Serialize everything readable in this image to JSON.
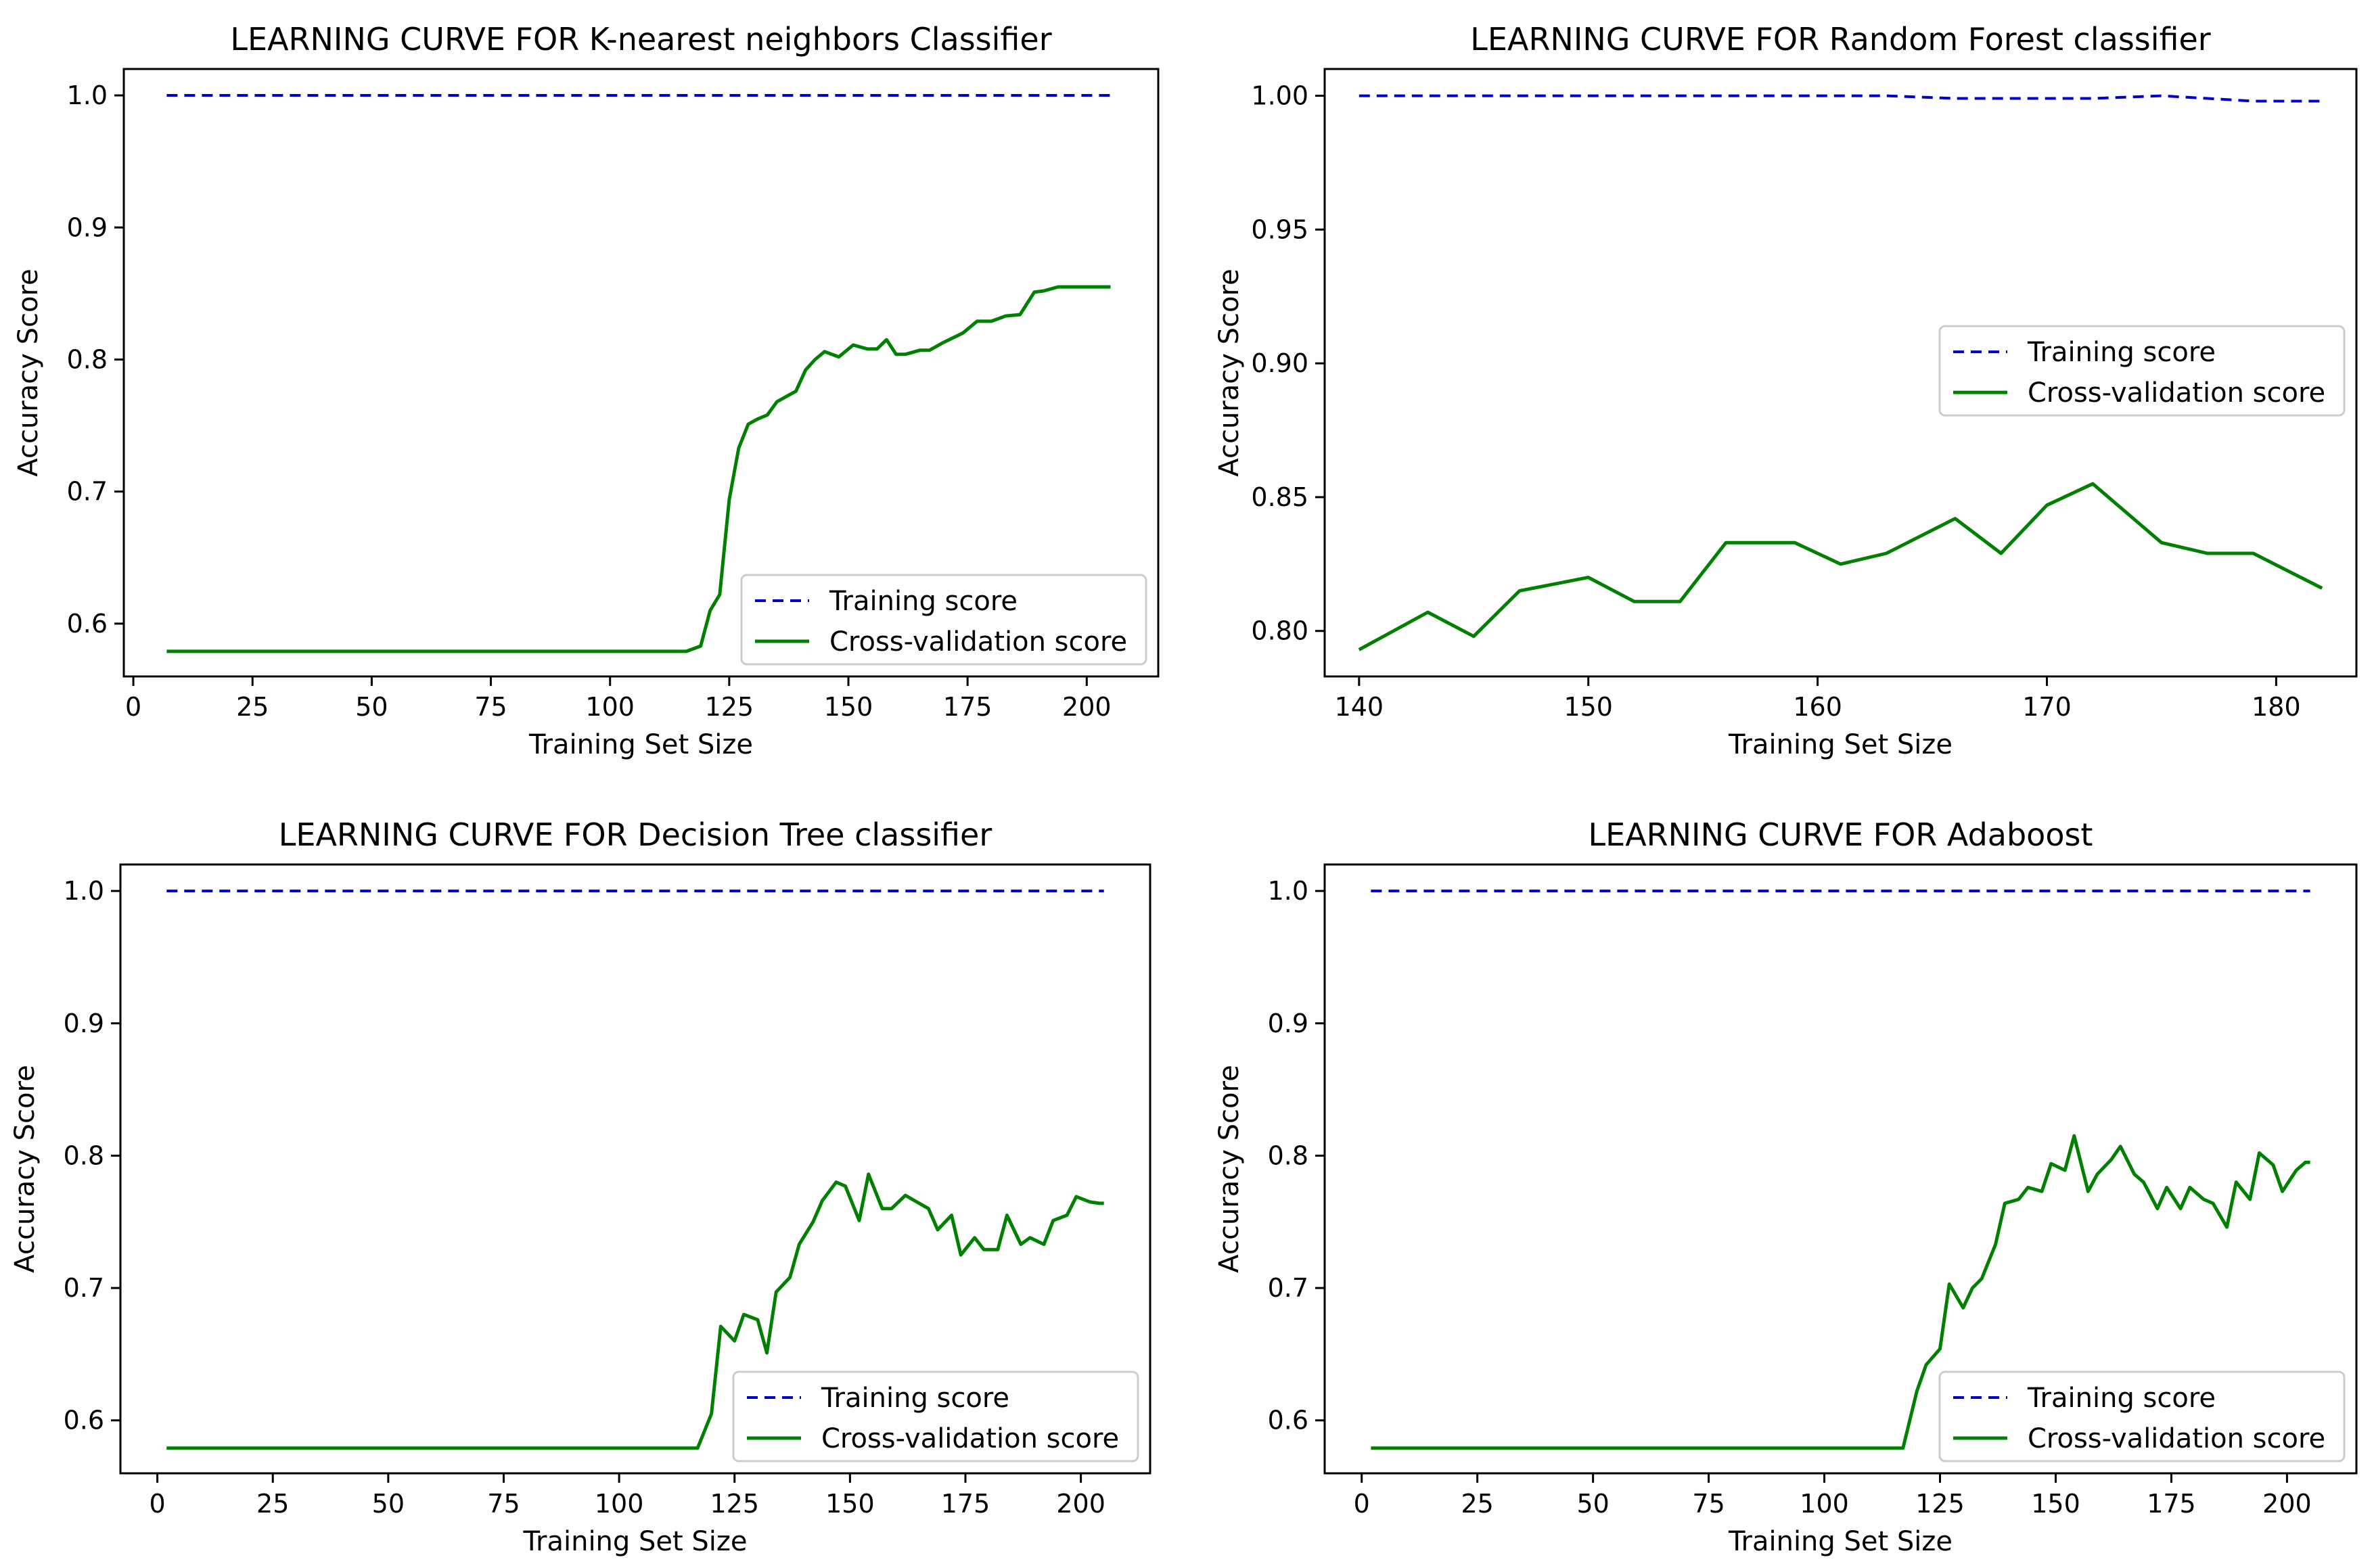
{
  "colors": {
    "training": "#0000cc",
    "cv": "#008000",
    "axes": "#000000"
  },
  "chart_data": [
    {
      "type": "line",
      "title": "LEARNING CURVE FOR K-nearest neighbors Classifier",
      "xlabel": "Training Set Size",
      "ylabel": "Accuracy Score",
      "xlim": [
        -2,
        215
      ],
      "ylim": [
        0.56,
        1.02
      ],
      "xticks": [
        0,
        25,
        50,
        75,
        100,
        125,
        150,
        175,
        200
      ],
      "yticks": [
        0.6,
        0.7,
        0.8,
        0.9,
        1.0
      ],
      "xtick_labels": [
        "0",
        "25",
        "50",
        "75",
        "100",
        "125",
        "150",
        "175",
        "200"
      ],
      "ytick_labels": [
        "0.6",
        "0.7",
        "0.8",
        "0.9",
        "1.0"
      ],
      "legend": {
        "location": "lower right",
        "entries": [
          "Training score",
          "Cross-validation score"
        ]
      },
      "series": [
        {
          "name": "Training score",
          "style": "dashed",
          "x": [
            7,
            205
          ],
          "y": [
            1.0,
            1.0
          ]
        },
        {
          "name": "Cross-validation score",
          "style": "solid",
          "x": [
            7,
            116,
            119,
            121,
            123,
            125,
            127,
            129,
            131,
            133,
            135,
            137,
            139,
            141,
            143,
            145,
            148,
            151,
            154,
            156,
            158,
            160,
            162,
            165,
            167,
            170,
            174,
            177,
            180,
            183,
            186,
            189,
            191,
            194,
            196,
            198,
            201,
            203,
            205
          ],
          "y": [
            0.579,
            0.579,
            0.583,
            0.61,
            0.622,
            0.694,
            0.733,
            0.751,
            0.755,
            0.758,
            0.768,
            0.772,
            0.776,
            0.792,
            0.8,
            0.806,
            0.802,
            0.811,
            0.808,
            0.808,
            0.815,
            0.804,
            0.804,
            0.807,
            0.807,
            0.813,
            0.82,
            0.829,
            0.829,
            0.833,
            0.834,
            0.851,
            0.852,
            0.855,
            0.855,
            0.855,
            0.855,
            0.855,
            0.855
          ]
        }
      ]
    },
    {
      "type": "line",
      "title": "LEARNING CURVE FOR Random Forest classifier",
      "xlabel": "Training Set Size",
      "ylabel": "Accuracy Score",
      "xlim": [
        138.5,
        183.5
      ],
      "ylim": [
        0.783,
        1.01
      ],
      "xticks": [
        140,
        150,
        160,
        170,
        180
      ],
      "yticks": [
        0.8,
        0.85,
        0.9,
        0.95,
        1.0
      ],
      "xtick_labels": [
        "140",
        "150",
        "160",
        "170",
        "180"
      ],
      "ytick_labels": [
        "0.80",
        "0.85",
        "0.90",
        "0.95",
        "1.00"
      ],
      "legend": {
        "location": "upper right",
        "entries": [
          "Training score",
          "Cross-validation score"
        ]
      },
      "series": [
        {
          "name": "Training score",
          "style": "dashed",
          "x": [
            140,
            143,
            145,
            147,
            150,
            152,
            154,
            156,
            159,
            161,
            163,
            166,
            168,
            170,
            172,
            175,
            177,
            179,
            182
          ],
          "y": [
            1.0,
            1.0,
            1.0,
            1.0,
            1.0,
            1.0,
            1.0,
            1.0,
            1.0,
            1.0,
            1.0,
            0.999,
            0.999,
            0.999,
            0.999,
            1.0,
            0.999,
            0.998,
            0.998
          ]
        },
        {
          "name": "Cross-validation score",
          "style": "solid",
          "x": [
            140,
            143,
            145,
            147,
            150,
            152,
            154,
            156,
            159,
            161,
            163,
            166,
            168,
            170,
            172,
            175,
            177,
            179,
            182
          ],
          "y": [
            0.793,
            0.807,
            0.798,
            0.815,
            0.82,
            0.811,
            0.811,
            0.833,
            0.833,
            0.825,
            0.829,
            0.842,
            0.829,
            0.847,
            0.855,
            0.833,
            0.829,
            0.829,
            0.816
          ]
        }
      ]
    },
    {
      "type": "line",
      "title": "LEARNING CURVE FOR Decision Tree classifier",
      "xlabel": "Training Set Size",
      "ylabel": "Accuracy Score",
      "xlim": [
        -8,
        215
      ],
      "ylim": [
        0.56,
        1.02
      ],
      "xticks": [
        0,
        25,
        50,
        75,
        100,
        125,
        150,
        175,
        200
      ],
      "yticks": [
        0.6,
        0.7,
        0.8,
        0.9,
        1.0
      ],
      "xtick_labels": [
        "0",
        "25",
        "50",
        "75",
        "100",
        "125",
        "150",
        "175",
        "200"
      ],
      "ytick_labels": [
        "0.6",
        "0.7",
        "0.8",
        "0.9",
        "1.0"
      ],
      "legend": {
        "location": "lower right",
        "entries": [
          "Training score",
          "Cross-validation score"
        ]
      },
      "series": [
        {
          "name": "Training score",
          "style": "dashed",
          "x": [
            2,
            205
          ],
          "y": [
            1.0,
            1.0
          ]
        },
        {
          "name": "Cross-validation score",
          "style": "solid",
          "x": [
            2,
            117,
            120,
            122,
            125,
            127,
            130,
            132,
            134,
            137,
            139,
            142,
            144,
            147,
            149,
            152,
            154,
            157,
            159,
            162,
            164,
            167,
            169,
            172,
            174,
            177,
            179,
            182,
            184,
            187,
            189,
            192,
            194,
            197,
            199,
            202,
            204,
            205
          ],
          "y": [
            0.579,
            0.579,
            0.605,
            0.671,
            0.66,
            0.68,
            0.676,
            0.651,
            0.697,
            0.708,
            0.733,
            0.75,
            0.766,
            0.78,
            0.777,
            0.751,
            0.786,
            0.76,
            0.76,
            0.77,
            0.766,
            0.76,
            0.744,
            0.755,
            0.725,
            0.738,
            0.729,
            0.729,
            0.755,
            0.733,
            0.738,
            0.733,
            0.751,
            0.755,
            0.769,
            0.765,
            0.764,
            0.764
          ]
        }
      ]
    },
    {
      "type": "line",
      "title": "LEARNING CURVE FOR Adaboost",
      "xlabel": "Training Set Size",
      "ylabel": "Accuracy Score",
      "xlim": [
        -8,
        215
      ],
      "ylim": [
        0.56,
        1.02
      ],
      "xticks": [
        0,
        25,
        50,
        75,
        100,
        125,
        150,
        175,
        200
      ],
      "yticks": [
        0.6,
        0.7,
        0.8,
        0.9,
        1.0
      ],
      "xtick_labels": [
        "0",
        "25",
        "50",
        "75",
        "100",
        "125",
        "150",
        "175",
        "200"
      ],
      "ytick_labels": [
        "0.6",
        "0.7",
        "0.8",
        "0.9",
        "1.0"
      ],
      "legend": {
        "location": "lower right",
        "entries": [
          "Training score",
          "Cross-validation score"
        ]
      },
      "series": [
        {
          "name": "Training score",
          "style": "dashed",
          "x": [
            2,
            205
          ],
          "y": [
            1.0,
            1.0
          ]
        },
        {
          "name": "Cross-validation score",
          "style": "solid",
          "x": [
            2,
            117,
            120,
            122,
            125,
            127,
            130,
            132,
            134,
            137,
            139,
            142,
            144,
            147,
            149,
            152,
            154,
            157,
            159,
            162,
            164,
            167,
            169,
            172,
            174,
            177,
            179,
            182,
            184,
            187,
            189,
            192,
            194,
            197,
            199,
            202,
            204,
            205
          ],
          "y": [
            0.579,
            0.579,
            0.622,
            0.642,
            0.654,
            0.703,
            0.685,
            0.7,
            0.707,
            0.733,
            0.764,
            0.767,
            0.776,
            0.773,
            0.794,
            0.789,
            0.815,
            0.773,
            0.786,
            0.797,
            0.807,
            0.786,
            0.78,
            0.76,
            0.776,
            0.76,
            0.776,
            0.767,
            0.764,
            0.746,
            0.78,
            0.767,
            0.802,
            0.793,
            0.773,
            0.789,
            0.795,
            0.795
          ]
        }
      ]
    }
  ]
}
